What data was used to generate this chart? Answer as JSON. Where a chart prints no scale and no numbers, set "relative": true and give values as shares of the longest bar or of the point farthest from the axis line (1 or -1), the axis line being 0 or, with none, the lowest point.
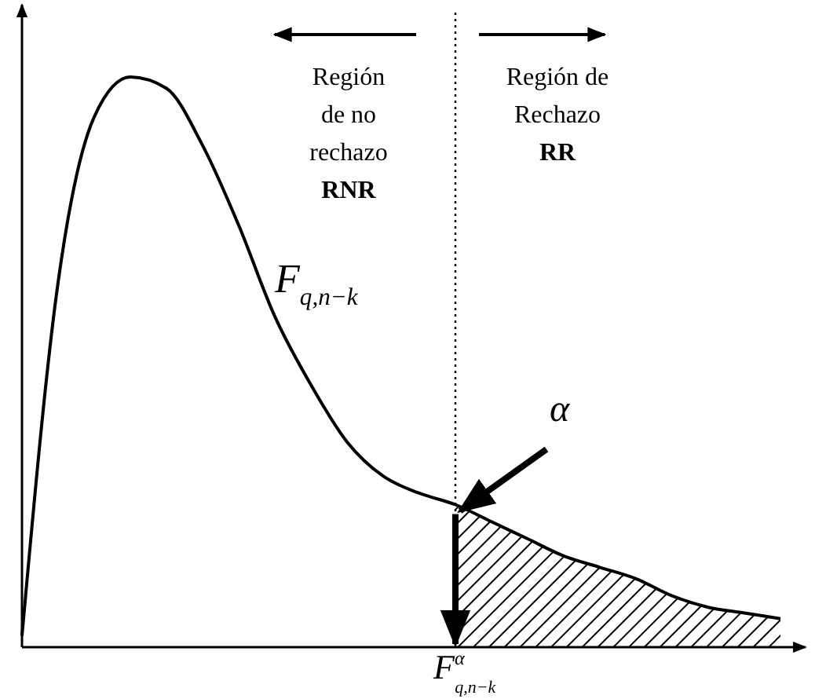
{
  "chart_data": {
    "type": "line",
    "relative": true,
    "categories": [
      null,
      null,
      null,
      null,
      null,
      null,
      null,
      null,
      null,
      null,
      null,
      null,
      null,
      null,
      null,
      null,
      null,
      null,
      null,
      null,
      null,
      null
    ],
    "series": [
      {
        "color": "#000000",
        "values": [
          0.02,
          0.64,
          0.93,
          1,
          0.98,
          0.88,
          0.74,
          0.58,
          0.46,
          0.36,
          0.3,
          0.27,
          0.25,
          0.22,
          0.19,
          0.16,
          0.14,
          0.12,
          0.09,
          0.07,
          0.06,
          0.05
        ]
      },
      {
        "type": "area",
        "color": "#000000",
        "values": [
          null,
          null,
          null,
          null,
          null,
          null,
          null,
          null,
          null,
          null,
          null,
          null,
          0.25,
          0.22,
          0.19,
          0.16,
          0.14,
          0.12,
          0.09,
          0.07,
          0.06,
          0.05
        ]
      }
    ],
    "annotations": [
      "Región\nde no\nrechazo\nRNR",
      "Región de\nRechazo\nRR",
      "F$_{q,n−k}$",
      "α",
      "F$^{α}$$_{q,n−k}$"
    ]
  }
}
